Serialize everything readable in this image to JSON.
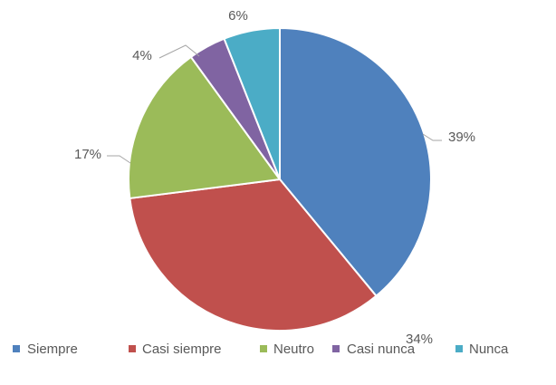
{
  "chart_data": {
    "type": "pie",
    "categories": [
      "Siempre",
      "Casi siempre",
      "Neutro",
      "Casi nunca",
      "Nunca"
    ],
    "values": [
      39,
      34,
      17,
      4,
      6
    ],
    "value_labels": [
      "39%",
      "34%",
      "17%",
      "4%",
      "6%"
    ],
    "colors": [
      "#4f81bd",
      "#c0504d",
      "#9bbb59",
      "#8064a2",
      "#4bacc6"
    ],
    "legend": "bottom"
  }
}
